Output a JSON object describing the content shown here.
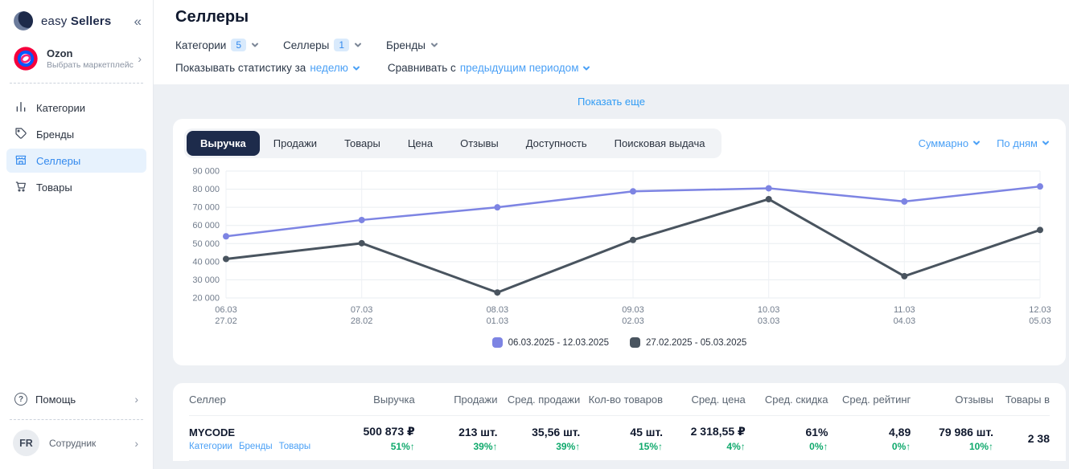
{
  "sidebar": {
    "brand": {
      "name_light": "easy",
      "name_bold": "Sellers",
      "collapse_icon": "«"
    },
    "marketplace": {
      "name": "Ozon",
      "subtitle": "Выбрать маркетплейс",
      "chevron": "›"
    },
    "items": [
      {
        "label": "Категории",
        "icon": "categories-icon",
        "active": false
      },
      {
        "label": "Бренды",
        "icon": "brands-icon",
        "active": false
      },
      {
        "label": "Селлеры",
        "icon": "sellers-icon",
        "active": true
      },
      {
        "label": "Товары",
        "icon": "products-icon",
        "active": false
      }
    ],
    "help": {
      "label": "Помощь",
      "chevron": "›"
    },
    "user": {
      "initials": "FR",
      "role": "Сотрудник",
      "chevron": "›"
    }
  },
  "header": {
    "title": "Селлеры",
    "filters": [
      {
        "label": "Категории",
        "count": "5"
      },
      {
        "label": "Селлеры",
        "count": "1"
      },
      {
        "label": "Бренды",
        "count": ""
      }
    ],
    "period": {
      "prefix": "Показывать статистику за",
      "value": "неделю"
    },
    "compare": {
      "prefix": "Сравнивать с",
      "value": "предыдущим периодом"
    }
  },
  "show_more_label": "Показать еще",
  "chart_card": {
    "tabs": [
      "Выручка",
      "Продажи",
      "Товары",
      "Цена",
      "Отзывы",
      "Доступность",
      "Поисковая выдача"
    ],
    "active_tab": "Выручка",
    "view_modes": [
      {
        "label": "Суммарно"
      },
      {
        "label": "По дням"
      }
    ]
  },
  "chart_data": {
    "type": "line",
    "title": "",
    "xlabel": "",
    "ylabel": "",
    "ylim": [
      20000,
      90000
    ],
    "y_ticks": [
      20000,
      30000,
      40000,
      50000,
      60000,
      70000,
      80000,
      90000
    ],
    "grid": true,
    "legend_position": "bottom",
    "x_tick_labels": [
      [
        "06.03",
        "27.02"
      ],
      [
        "07.03",
        "28.02"
      ],
      [
        "08.03",
        "01.03"
      ],
      [
        "09.03",
        "02.03"
      ],
      [
        "10.03",
        "03.03"
      ],
      [
        "11.03",
        "04.03"
      ],
      [
        "12.03",
        "05.03"
      ]
    ],
    "series": [
      {
        "name": "06.03.2025 - 12.03.2025",
        "color": "#7d84e3",
        "values": [
          54000,
          63000,
          70000,
          78800,
          80500,
          73200,
          81500
        ]
      },
      {
        "name": "27.02.2025 - 05.03.2025",
        "color": "#49545f",
        "values": [
          41500,
          50200,
          23000,
          52000,
          74500,
          32000,
          57500
        ]
      }
    ]
  },
  "table": {
    "up_arrow": "↑",
    "columns": [
      "Селлер",
      "Выручка",
      "Продажи",
      "Сред. продажи",
      "Кол-во товаров",
      "Сред. цена",
      "Сред. скидка",
      "Сред. рейтинг",
      "Отзывы",
      "Товары в"
    ],
    "rows": [
      {
        "seller": "MYCODE",
        "links": [
          "Категории",
          "Бренды",
          "Товары"
        ],
        "metrics": [
          {
            "value": "500 873 ₽",
            "change": "51%",
            "dir": "up"
          },
          {
            "value": "213 шт.",
            "change": "39%",
            "dir": "up"
          },
          {
            "value": "35,56 шт.",
            "change": "39%",
            "dir": "up"
          },
          {
            "value": "45 шт.",
            "change": "15%",
            "dir": "up"
          },
          {
            "value": "2 318,55 ₽",
            "change": "4%",
            "dir": "up"
          },
          {
            "value": "61%",
            "change": "0%",
            "dir": "up"
          },
          {
            "value": "4,89",
            "change": "0%",
            "dir": "up"
          },
          {
            "value": "79 986 шт.",
            "change": "10%",
            "dir": "up"
          },
          {
            "value": "2 38",
            "change": "",
            "dir": ""
          }
        ]
      }
    ]
  },
  "colors": {
    "accent_blue": "#3289ee",
    "link_blue": "#4aa0f6",
    "active_tab_bg": "#1d2b4b",
    "positive_green": "#0fa96c",
    "page_bg": "#edf0f4",
    "series_current": "#7d84e3",
    "series_previous": "#49545f"
  }
}
